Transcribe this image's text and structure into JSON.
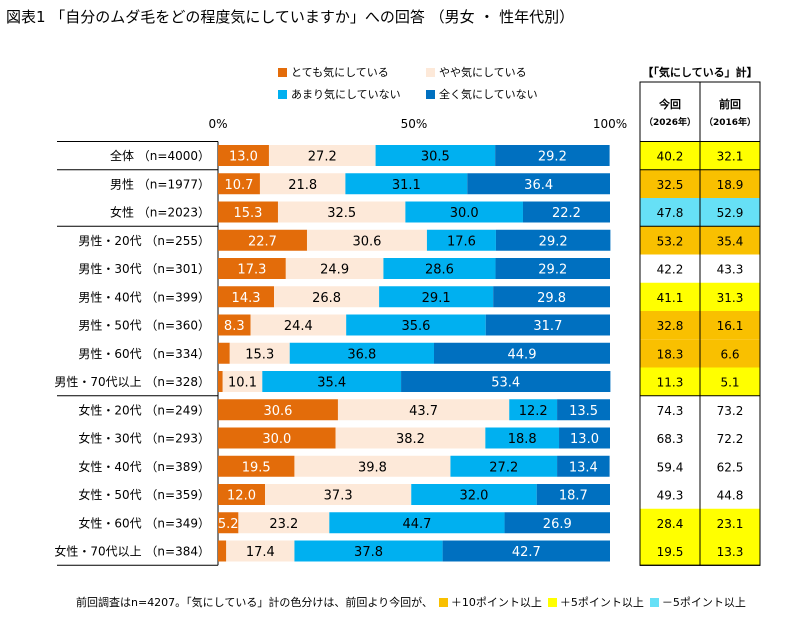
{
  "title": "図表1 「自分のムダ毛をどの程度気にしていますか」への回答 （男女 ・ 性年代別）",
  "colors": {
    "very": "#E36C0A",
    "somewhat": "#FDE9D9",
    "notmuch": "#00B0F0",
    "notatall": "#0070C0",
    "plus10": "#F9C000",
    "plus5": "#FFFF00",
    "minus5": "#66E0F6"
  },
  "summary_header": {
    "title": "【「気にしている」計】",
    "col1": "今回",
    "col1_sub": "（2026年）",
    "col2": "前回",
    "col2_sub": "（2016年）"
  },
  "footnote": {
    "text": "前回調査はn=4207。「気にしている」計の色分けは、前回より今回が、",
    "key_plus10": "＋10ポイント以上",
    "key_plus5": "＋5ポイント以上",
    "key_minus5": "－5ポイント以上"
  },
  "chart_data": {
    "type": "bar",
    "orientation": "horizontal",
    "stacked": true,
    "percent_stacked": true,
    "xlim": [
      0,
      100
    ],
    "xticks": [
      "0%",
      "50%",
      "100%"
    ],
    "grid": false,
    "legend_position": "top",
    "categories": [
      "全体 （n=4000）",
      "男性 （n=1977）",
      "女性 （n=2023）",
      "男性・20代 （n=255）",
      "男性・30代 （n=301）",
      "男性・40代 （n=399）",
      "男性・50代 （n=360）",
      "男性・60代 （n=334）",
      "男性・70代以上 （n=328）",
      "女性・20代 （n=249）",
      "女性・30代 （n=293）",
      "女性・40代 （n=389）",
      "女性・50代 （n=359）",
      "女性・60代 （n=349）",
      "女性・70代以上 （n=384）"
    ],
    "series": [
      {
        "name": "とても気にしている",
        "values": [
          13.0,
          10.7,
          15.3,
          22.7,
          17.3,
          14.3,
          8.3,
          3.0,
          1.2,
          30.6,
          30.0,
          19.5,
          12.0,
          5.2,
          2.1
        ]
      },
      {
        "name": "やや気にしている",
        "values": [
          27.2,
          21.8,
          32.5,
          30.6,
          24.9,
          26.8,
          24.4,
          15.3,
          10.1,
          43.7,
          38.2,
          39.8,
          37.3,
          23.2,
          17.4
        ]
      },
      {
        "name": "あまり気にしていない",
        "values": [
          30.5,
          31.1,
          30.0,
          17.6,
          28.6,
          29.1,
          35.6,
          36.8,
          35.4,
          12.2,
          18.8,
          27.2,
          32.0,
          44.7,
          37.8
        ]
      },
      {
        "name": "全く気にしていない",
        "values": [
          29.2,
          36.4,
          22.2,
          29.2,
          29.2,
          29.8,
          31.7,
          44.9,
          53.4,
          13.5,
          13.0,
          13.4,
          18.7,
          26.9,
          42.7
        ]
      }
    ],
    "hidden_value_labels": [
      [
        false,
        false,
        false,
        false,
        false,
        false,
        false,
        true,
        true,
        false,
        false,
        false,
        false,
        false,
        true
      ],
      [
        false,
        false,
        false,
        false,
        false,
        false,
        false,
        false,
        false,
        false,
        false,
        false,
        false,
        false,
        false
      ],
      [
        false,
        false,
        false,
        false,
        false,
        false,
        false,
        false,
        false,
        false,
        false,
        false,
        false,
        false,
        false
      ],
      [
        false,
        false,
        false,
        false,
        false,
        false,
        false,
        false,
        false,
        false,
        false,
        false,
        false,
        false,
        false
      ]
    ],
    "value_labels": [
      [
        "13.0",
        "10.7",
        "15.3",
        "22.7",
        "17.3",
        "14.3",
        "8.3",
        "3.0",
        "1.2",
        "30.6",
        "30.0",
        "19.5",
        "12.0",
        "5.2",
        "2.1"
      ],
      [
        "27.2",
        "21.8",
        "32.5",
        "30.6",
        "24.9",
        "26.8",
        "24.4",
        "15.3",
        "10.1",
        "43.7",
        "38.2",
        "39.8",
        "37.3",
        "23.2",
        "17.4"
      ],
      [
        "30.5",
        "31.1",
        "30.0",
        "17.6",
        "28.6",
        "29.1",
        "35.6",
        "36.8",
        "35.4",
        "12.2",
        "18.8",
        "27.2",
        "32.0",
        "44.7",
        "37.8"
      ],
      [
        "29.2",
        "36.4",
        "22.2",
        "29.2",
        "29.2",
        "29.8",
        "31.7",
        "44.9",
        "53.4",
        "13.5",
        "13.0",
        "13.4",
        "18.7",
        "26.9",
        "42.7"
      ]
    ],
    "summary": {
      "current": [
        "40.2",
        "32.5",
        "47.8",
        "53.2",
        "42.2",
        "41.1",
        "32.8",
        "18.3",
        "11.3",
        "74.3",
        "68.3",
        "59.4",
        "49.3",
        "28.4",
        "19.5"
      ],
      "previous": [
        "32.1",
        "18.9",
        "52.9",
        "35.4",
        "43.3",
        "31.3",
        "16.1",
        "6.6",
        "5.1",
        "73.2",
        "72.2",
        "62.5",
        "44.8",
        "23.1",
        "13.3"
      ],
      "highlight": [
        "plus5",
        "plus10",
        "minus5",
        "plus10",
        "none",
        "plus5",
        "plus10",
        "plus10",
        "plus5",
        "none",
        "none",
        "none",
        "none",
        "plus5",
        "plus5"
      ]
    }
  }
}
